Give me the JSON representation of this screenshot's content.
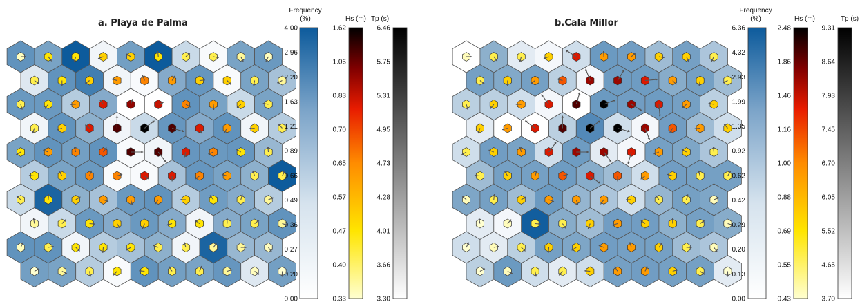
{
  "chart_data": [
    {
      "type": "heatmap",
      "title": "a. Playa de Palma",
      "title_prefix": "a.",
      "title_name": "Playa de Palma",
      "grid_shape": [
        10,
        10
      ],
      "colorbars": [
        {
          "label_line1": "Frequency",
          "label_line2": "(%)",
          "ticks": [
            "4.00",
            "2.96",
            "2.20",
            "1.63",
            "1.21",
            "0.89",
            "0.66",
            "0.49",
            "0.36",
            "0.27",
            "0.20",
            "0.00"
          ]
        },
        {
          "label": "Hs (m)",
          "ticks": [
            "1.62",
            "1.06",
            "0.83",
            "0.70",
            "0.65",
            "0.57",
            "0.47",
            "0.40",
            "0.33"
          ]
        },
        {
          "label": "Tp (s)",
          "ticks": [
            "6.46",
            "5.75",
            "5.31",
            "4.95",
            "4.73",
            "4.28",
            "4.01",
            "3.66",
            "3.30"
          ]
        }
      ],
      "frequency_pct": [
        [
          1.6,
          1.1,
          4.0,
          0.2,
          1.2,
          4.0,
          0.4,
          0.1,
          1.1,
          1.4
        ],
        [
          0.3,
          1.6,
          2.3,
          0.2,
          0.1,
          0.9,
          1.5,
          0.1,
          1.1,
          0.6
        ],
        [
          1.4,
          1.4,
          0.5,
          0.9,
          0.0,
          0.0,
          1.6,
          1.1,
          0.4,
          1.1
        ],
        [
          0.2,
          1.6,
          0.8,
          0.2,
          0.4,
          1.5,
          0.9,
          1.6,
          0.2,
          0.5
        ],
        [
          1.1,
          1.6,
          1.2,
          1.6,
          0.1,
          0.2,
          1.5,
          1.4,
          1.5,
          0.7
        ],
        [
          0.5,
          1.1,
          1.4,
          0.1,
          0.1,
          0.6,
          1.5,
          1.1,
          0.8,
          4.0
        ],
        [
          0.4,
          3.5,
          0.8,
          0.6,
          1.4,
          1.6,
          0.5,
          1.3,
          0.9,
          0.5
        ],
        [
          0.2,
          0.4,
          1.4,
          0.9,
          1.4,
          0.9,
          0.2,
          0.9,
          1.1,
          1.6
        ],
        [
          1.6,
          1.6,
          0.2,
          0.5,
          0.6,
          0.8,
          0.2,
          3.5,
          0.7,
          0.7
        ],
        [
          1.2,
          1.1,
          0.5,
          0.1,
          1.6,
          1.2,
          1.1,
          1.5,
          0.3,
          1.2
        ]
      ],
      "hs_m": [
        [
          0.34,
          0.44,
          0.44,
          0.47,
          0.47,
          0.44,
          0.4,
          0.4,
          0.36,
          0.34
        ],
        [
          0.4,
          0.44,
          0.47,
          0.57,
          0.6,
          0.57,
          0.47,
          0.47,
          0.4,
          0.36
        ],
        [
          0.4,
          0.44,
          0.57,
          0.7,
          0.86,
          0.74,
          0.6,
          0.57,
          0.47,
          0.4
        ],
        [
          0.4,
          0.47,
          0.7,
          1.06,
          1.62,
          1.06,
          0.7,
          0.57,
          0.47,
          0.4
        ],
        [
          0.44,
          0.57,
          0.6,
          0.65,
          1.06,
          1.06,
          0.7,
          0.6,
          0.44,
          0.4
        ],
        [
          0.44,
          0.47,
          0.6,
          0.6,
          0.7,
          0.7,
          0.6,
          0.57,
          0.4,
          0.4
        ],
        [
          0.4,
          0.44,
          0.47,
          0.57,
          0.57,
          0.57,
          0.47,
          0.44,
          0.4,
          0.36
        ],
        [
          0.36,
          0.4,
          0.44,
          0.47,
          0.47,
          0.44,
          0.44,
          0.4,
          0.4,
          0.36
        ],
        [
          0.34,
          0.4,
          0.44,
          0.44,
          0.44,
          0.4,
          0.4,
          0.36,
          0.36,
          0.34
        ],
        [
          0.33,
          0.36,
          0.4,
          0.44,
          0.44,
          0.4,
          0.4,
          0.36,
          0.34,
          0.33
        ]
      ]
    },
    {
      "type": "heatmap",
      "title": "b.Cala Millor",
      "title_prefix": "b.",
      "title_name": "Cala Millor",
      "grid_shape": [
        10,
        10
      ],
      "colorbars": [
        {
          "label_line1": "Frequency",
          "label_line2": "(%)",
          "ticks": [
            "6.36",
            "4.32",
            "2.93",
            "1.99",
            "1.35",
            "0.92",
            "0.62",
            "0.42",
            "0.29",
            "0.20",
            "0.13",
            "0.00"
          ]
        },
        {
          "label": "Hs (m)",
          "ticks": [
            "2.48",
            "1.86",
            "1.46",
            "1.16",
            "1.00",
            "0.88",
            "0.69",
            "0.55",
            "0.43"
          ]
        },
        {
          "label": "Tp (s)",
          "ticks": [
            "9.31",
            "8.64",
            "7.93",
            "7.45",
            "6.70",
            "6.05",
            "5.52",
            "4.65",
            "3.70"
          ]
        }
      ],
      "frequency_pct": [
        [
          0.0,
          0.8,
          0.2,
          0.1,
          0.3,
          1.6,
          1.4,
          0.6,
          1.3,
          0.5
        ],
        [
          1.3,
          1.0,
          1.3,
          0.4,
          0.1,
          1.5,
          1.5,
          0.9,
          1.3,
          0.6
        ],
        [
          0.4,
          0.4,
          0.3,
          0.1,
          0.0,
          1.6,
          1.4,
          1.5,
          1.3,
          0.4
        ],
        [
          0.2,
          0.0,
          0.0,
          0.4,
          2.5,
          0.3,
          0.1,
          1.4,
          0.6,
          0.3
        ],
        [
          0.3,
          1.4,
          1.2,
          0.3,
          1.5,
          0.2,
          0.1,
          1.3,
          1.1,
          0.5
        ],
        [
          0.6,
          1.3,
          1.3,
          1.5,
          0.9,
          0.6,
          0.3,
          1.4,
          1.3,
          1.3
        ],
        [
          1.1,
          1.3,
          0.6,
          1.6,
          0.7,
          0.5,
          0.3,
          0.7,
          1.3,
          1.1
        ],
        [
          0.2,
          0.1,
          6.0,
          0.9,
          0.6,
          1.4,
          1.4,
          0.8,
          1.3,
          0.9
        ],
        [
          0.3,
          0.2,
          0.4,
          1.3,
          1.1,
          1.4,
          1.3,
          1.3,
          0.6,
          0.5
        ],
        [
          0.4,
          1.6,
          0.3,
          0.2,
          0.3,
          1.3,
          1.4,
          1.3,
          1.3,
          0.2
        ]
      ],
      "hs_m": [
        [
          0.45,
          0.55,
          0.55,
          0.69,
          1.16,
          0.88,
          0.88,
          0.69,
          0.69,
          0.55
        ],
        [
          0.55,
          0.69,
          0.88,
          1.0,
          1.46,
          1.46,
          1.16,
          0.88,
          0.69,
          0.55
        ],
        [
          0.55,
          0.69,
          0.88,
          1.16,
          1.86,
          2.48,
          1.46,
          1.16,
          0.88,
          0.69
        ],
        [
          0.69,
          0.88,
          1.16,
          1.86,
          2.48,
          2.48,
          1.46,
          1.0,
          0.88,
          0.69
        ],
        [
          0.55,
          0.69,
          0.88,
          1.16,
          1.46,
          1.46,
          1.16,
          0.88,
          0.69,
          0.55
        ],
        [
          0.55,
          0.69,
          0.88,
          1.0,
          1.16,
          1.0,
          0.88,
          0.69,
          0.55,
          0.55
        ],
        [
          0.45,
          0.55,
          0.69,
          0.88,
          0.88,
          0.88,
          0.69,
          0.55,
          0.55,
          0.45
        ],
        [
          0.43,
          0.45,
          0.55,
          0.55,
          0.69,
          0.88,
          0.69,
          0.69,
          0.55,
          0.45
        ],
        [
          0.43,
          0.45,
          0.55,
          0.69,
          0.69,
          0.88,
          0.88,
          0.69,
          0.55,
          0.45
        ],
        [
          0.43,
          0.45,
          0.55,
          0.55,
          0.69,
          0.88,
          0.88,
          0.69,
          0.55,
          0.43
        ]
      ]
    }
  ],
  "colors": {
    "hex_edge": "#555555",
    "frequency_ramp": [
      "#ffffff",
      "#d8e4ef",
      "#8fb1cd",
      "#5b8fbb",
      "#0d5b9c"
    ],
    "hs_ramp": [
      "#ffffd0",
      "#ffe500",
      "#ff9000",
      "#e81c00",
      "#800000",
      "#000000"
    ],
    "tp_ramp": [
      "#ffffff",
      "#000000"
    ],
    "arrow": "#555555"
  }
}
